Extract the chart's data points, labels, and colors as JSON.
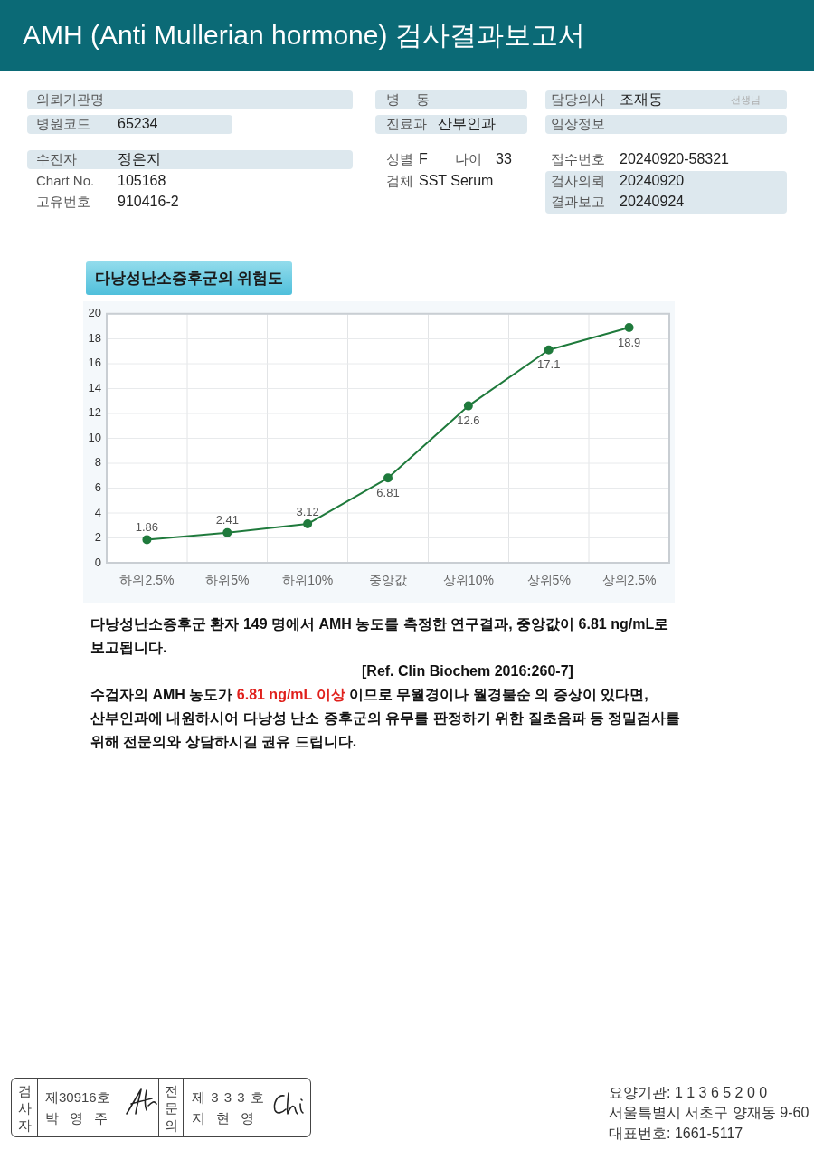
{
  "chart_data": {
    "type": "line",
    "title": "AMH (Anti Mullerian hormone) 검사결과보고서",
    "subtitle": "다낭성난소증후군의 위험도",
    "categories": [
      "하위2.5%",
      "하위5%",
      "하위10%",
      "중앙값",
      "상위10%",
      "상위5%",
      "상위2.5%"
    ],
    "values": [
      1.86,
      2.41,
      3.12,
      6.81,
      12.6,
      17.1,
      18.9
    ],
    "color": "#1f7a3c",
    "ylim": [
      0,
      20
    ],
    "yticks": [
      0,
      2,
      4,
      6,
      8,
      10,
      12,
      14,
      16,
      18,
      20
    ],
    "grid": true,
    "marker": "circle",
    "data_labels": true,
    "annotations": [
      "의뢰기관명",
      "병원코드",
      "65234",
      "수진자",
      "정은지",
      "Chart No.",
      "105168",
      "고유번호",
      "910416-2",
      "병 동",
      "진료과",
      "산부인과",
      "성별",
      "F",
      "나이",
      "33",
      "검체",
      "SST Serum",
      "담당의사",
      "조재동",
      "선생님",
      "임상정보",
      "접수번호",
      "20240920-58321",
      "검사의뢰",
      "20240920",
      "결과보고",
      "20240924",
      "다낭성난소증후군 환자 149 명에서 AMH 농도를 측정한 연구결과, 중앙값이 6.81 ng/mL로 보고됩니다.",
      "[Ref. Clin Biochem 2016:260-7]",
      "수검자의 AMH 농도가",
      "6.81 ng/mL 이상",
      "이므로 무월경이나 월경불순 의 증상이 있다면,",
      "산부인과에 내원하시어 다낭성 난소 증후군의 유무를 판정하기 위한 질초음파 등 정밀검사를",
      "위해 전문의와 상담하시길 권유 드립니다.",
      "검사자",
      "제30916호",
      "박 영 주",
      "전문의",
      "제 3 3 3 호",
      "지 현 영",
      "요양기관: 1 1 3 6 5 2 0 0",
      "서울특별시 서초구 양재동 9-60",
      "대표번호: 1661-5117"
    ]
  }
}
